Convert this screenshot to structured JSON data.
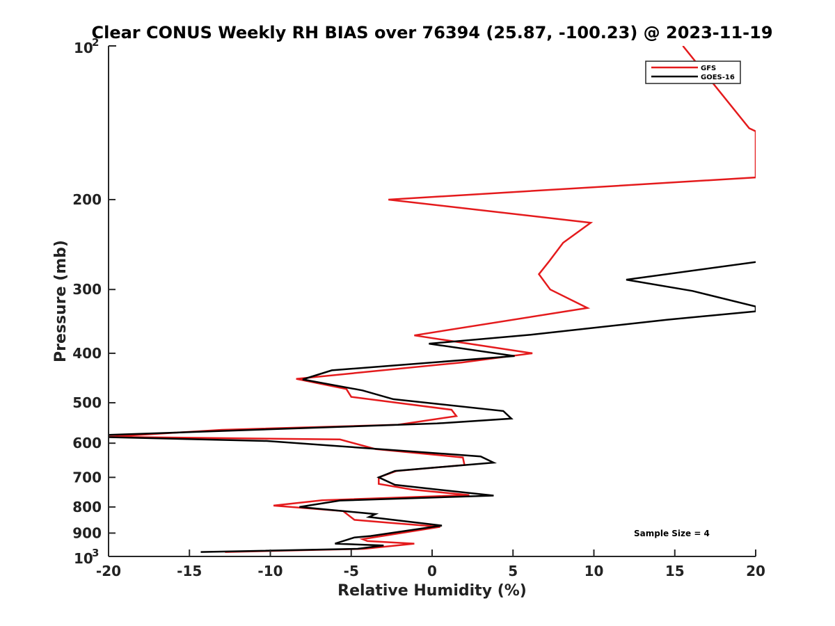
{
  "chart_data": {
    "type": "line",
    "title": "Clear CONUS Weekly RH BIAS over 76394 (25.87, -100.23) @ 2023-11-19",
    "xlabel": "Relative Humidity (%)",
    "ylabel": "Pressure (mb)",
    "xlim": [
      -20,
      20
    ],
    "ylim": [
      1000,
      100
    ],
    "yscale": "log",
    "y_reversed": true,
    "grid": false,
    "legend_position": "top-right",
    "annotation": "Sample Size = 4",
    "x_ticks": [
      "-20",
      "-15",
      "-10",
      "-5",
      "0",
      "5",
      "10",
      "15",
      "20"
    ],
    "y_ticks": [
      "200",
      "300",
      "400",
      "500",
      "600",
      "700",
      "800",
      "900"
    ],
    "y_limit_ticks": [
      {
        "base": "10",
        "exp": "2"
      },
      {
        "base": "10",
        "exp": "3"
      }
    ],
    "series": [
      {
        "name": "GFS",
        "color": "#e41a1c",
        "points": [
          [
            15.5,
            100
          ],
          [
            19.6,
            145
          ],
          [
            20.0,
            147
          ],
          [
            20.0,
            181
          ],
          [
            -2.7,
            200
          ],
          [
            9.8,
            222
          ],
          [
            8.1,
            243
          ],
          [
            7.2,
            265
          ],
          [
            6.6,
            280
          ],
          [
            7.3,
            300
          ],
          [
            9.6,
            326
          ],
          [
            -1.1,
            369
          ],
          [
            6.2,
            400
          ],
          [
            1.8,
            417
          ],
          [
            -8.4,
            449
          ],
          [
            -5.3,
            470
          ],
          [
            -5.0,
            487
          ],
          [
            1.2,
            516
          ],
          [
            1.5,
            531
          ],
          [
            -2.1,
            552
          ],
          [
            -13.0,
            565
          ],
          [
            -20.0,
            583
          ],
          [
            -5.7,
            590
          ],
          [
            -3.5,
            616
          ],
          [
            1.9,
            640
          ],
          [
            2.0,
            662
          ],
          [
            -2.2,
            680
          ],
          [
            -3.3,
            700
          ],
          [
            -3.3,
            721
          ],
          [
            -1.2,
            740
          ],
          [
            2.3,
            758
          ],
          [
            -6.8,
            776
          ],
          [
            -9.8,
            795
          ],
          [
            -5.5,
            815
          ],
          [
            -4.8,
            848
          ],
          [
            -2.5,
            860
          ],
          [
            0.5,
            875
          ],
          [
            -4.3,
            925
          ],
          [
            -4.0,
            933
          ],
          [
            -1.1,
            944
          ],
          [
            -4.2,
            966
          ],
          [
            -12.8,
            980
          ]
        ]
      },
      {
        "name": "GOES-16",
        "color": "#000000",
        "points": [
          [
            20.0,
            265
          ],
          [
            12.0,
            287
          ],
          [
            16.1,
            302
          ],
          [
            20.0,
            324
          ],
          [
            20.0,
            331
          ],
          [
            14.5,
            344
          ],
          [
            6.1,
            368
          ],
          [
            -0.2,
            383
          ],
          [
            5.1,
            405
          ],
          [
            -6.2,
            432
          ],
          [
            -8.0,
            450
          ],
          [
            -4.3,
            473
          ],
          [
            -2.4,
            492
          ],
          [
            4.4,
            519
          ],
          [
            4.9,
            537
          ],
          [
            0.3,
            549
          ],
          [
            -20.0,
            578
          ],
          [
            -20.0,
            584
          ],
          [
            -10.2,
            594
          ],
          [
            3.0,
            637
          ],
          [
            3.8,
            655
          ],
          [
            -2.3,
            680
          ],
          [
            -3.3,
            700
          ],
          [
            -2.3,
            724
          ],
          [
            0.1,
            738
          ],
          [
            3.8,
            760
          ],
          [
            -5.7,
            777
          ],
          [
            -8.2,
            800
          ],
          [
            -3.5,
            826
          ],
          [
            -3.9,
            837
          ],
          [
            0.6,
            870
          ],
          [
            -3.8,
            912
          ],
          [
            -4.8,
            918
          ],
          [
            -6.0,
            944
          ],
          [
            -3.0,
            952
          ],
          [
            -4.6,
            966
          ],
          [
            -14.3,
            980
          ]
        ]
      }
    ]
  }
}
